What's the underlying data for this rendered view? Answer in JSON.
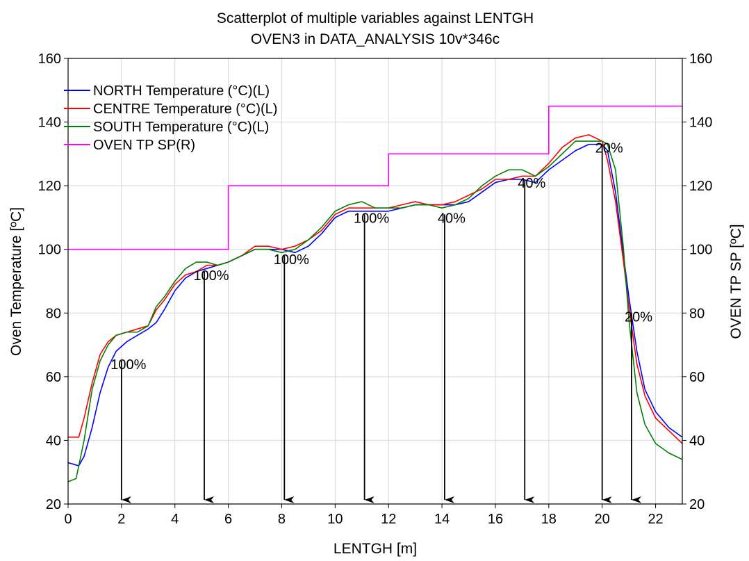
{
  "chart_data": {
    "type": "line",
    "title": "Scatterplot of multiple variables against LENTGH",
    "subtitle": "OVEN3 in DATA_ANALYSIS 10v*346c",
    "xlabel": "LENTGH [m]",
    "ylabel_left": "Oven Temperature [ºC]",
    "ylabel_right": "OVEN TP SP [ºC]",
    "xlim": [
      0,
      23
    ],
    "ylim_left": [
      20,
      160
    ],
    "ylim_right": [
      20,
      160
    ],
    "x_ticks": [
      "0",
      "2",
      "4",
      "6",
      "8",
      "10",
      "12",
      "14",
      "16",
      "18",
      "20",
      "22"
    ],
    "y_ticks_left": [
      "20",
      "40",
      "60",
      "80",
      "100",
      "120",
      "140",
      "160"
    ],
    "y_ticks_right": [
      "20",
      "40",
      "60",
      "80",
      "100",
      "120",
      "140",
      "160"
    ],
    "grid": true,
    "legend_position": "top-left",
    "series": [
      {
        "name": "NORTH Temperature (°C)(L)",
        "color": "#0000ff",
        "axis": "left",
        "x": [
          0,
          0.4,
          0.6,
          0.9,
          1.2,
          1.5,
          1.8,
          2.2,
          2.6,
          3.0,
          3.3,
          3.6,
          4.0,
          4.4,
          4.8,
          5.2,
          5.6,
          6.0,
          6.5,
          7.0,
          7.5,
          8.0,
          8.5,
          9.0,
          9.5,
          10.0,
          10.5,
          11.0,
          11.5,
          12.0,
          12.5,
          13.0,
          13.5,
          14.0,
          14.5,
          15.0,
          15.5,
          16.0,
          16.5,
          17.0,
          17.5,
          18.0,
          18.5,
          19.0,
          19.5,
          20.0,
          20.2,
          20.5,
          20.8,
          21.0,
          21.3,
          21.6,
          22.0,
          22.5,
          23.0
        ],
        "y": [
          33,
          32,
          35,
          44,
          55,
          63,
          68,
          71,
          73,
          75,
          77,
          81,
          87,
          91,
          93,
          94,
          95,
          96,
          98,
          100,
          100,
          100,
          99,
          101,
          105,
          110,
          112,
          112,
          112,
          112,
          113,
          114,
          114,
          114,
          114,
          115,
          118,
          121,
          122,
          122,
          121,
          125,
          128,
          131,
          133,
          133,
          131,
          118,
          98,
          85,
          68,
          56,
          49,
          44,
          41
        ]
      },
      {
        "name": "CENTRE Temperature (°C)(L)",
        "color": "#ff0000",
        "axis": "left",
        "x": [
          0,
          0.4,
          0.6,
          0.9,
          1.2,
          1.5,
          1.8,
          2.2,
          2.6,
          3.0,
          3.3,
          3.6,
          4.0,
          4.4,
          4.8,
          5.2,
          5.6,
          6.0,
          6.5,
          7.0,
          7.5,
          8.0,
          8.5,
          9.0,
          9.5,
          10.0,
          10.5,
          11.0,
          11.5,
          12.0,
          12.5,
          13.0,
          13.5,
          14.0,
          14.5,
          15.0,
          15.5,
          16.0,
          16.5,
          17.0,
          17.5,
          18.0,
          18.5,
          19.0,
          19.5,
          20.0,
          20.2,
          20.5,
          20.8,
          21.0,
          21.3,
          21.6,
          22.0,
          22.5,
          23.0
        ],
        "y": [
          41,
          41,
          47,
          58,
          67,
          71,
          73,
          74,
          75,
          76,
          81,
          84,
          89,
          92,
          93,
          95,
          95,
          96,
          98,
          101,
          101,
          100,
          101,
          103,
          106,
          111,
          113,
          113,
          113,
          113,
          114,
          115,
          114,
          114,
          115,
          117,
          119,
          122,
          122,
          123,
          123,
          127,
          132,
          135,
          136,
          134,
          128,
          115,
          96,
          82,
          64,
          54,
          47,
          43,
          39
        ]
      },
      {
        "name": "SOUTH Temperature (°C)(L)",
        "color": "#008000",
        "axis": "left",
        "x": [
          0,
          0.3,
          0.6,
          0.9,
          1.2,
          1.5,
          1.8,
          2.2,
          2.6,
          3.0,
          3.3,
          3.6,
          4.0,
          4.4,
          4.8,
          5.2,
          5.6,
          6.0,
          6.5,
          7.0,
          7.5,
          8.0,
          8.5,
          9.0,
          9.5,
          10.0,
          10.5,
          11.0,
          11.5,
          12.0,
          12.5,
          13.0,
          13.5,
          14.0,
          14.5,
          15.0,
          15.5,
          16.0,
          16.5,
          17.0,
          17.5,
          18.0,
          18.5,
          19.0,
          19.5,
          20.0,
          20.2,
          20.5,
          20.8,
          21.0,
          21.3,
          21.6,
          22.0,
          22.5,
          23.0
        ],
        "y": [
          27,
          28,
          40,
          56,
          65,
          70,
          73,
          74,
          74,
          76,
          82,
          85,
          90,
          94,
          96,
          96,
          95,
          96,
          98,
          100,
          100,
          99,
          100,
          103,
          107,
          112,
          114,
          115,
          113,
          113,
          113,
          114,
          114,
          113,
          114,
          116,
          120,
          123,
          125,
          125,
          123,
          126,
          130,
          134,
          134,
          134,
          133,
          125,
          100,
          78,
          55,
          45,
          39,
          36,
          34
        ]
      },
      {
        "name": "OVEN TP SP(R)",
        "color": "#ff00ff",
        "axis": "right",
        "step": true,
        "x": [
          0,
          6,
          6,
          12,
          12,
          18,
          18,
          23
        ],
        "y": [
          100,
          100,
          120,
          120,
          130,
          130,
          145,
          145
        ]
      }
    ],
    "annotations": [
      {
        "x": 2,
        "y_top": 65,
        "label": "100%"
      },
      {
        "x": 5.1,
        "y_top": 93,
        "label": "100%"
      },
      {
        "x": 8.1,
        "y_top": 98,
        "label": "100%"
      },
      {
        "x": 11.1,
        "y_top": 111,
        "label": "100%"
      },
      {
        "x": 14.1,
        "y_top": 111,
        "label": "40%"
      },
      {
        "x": 17.1,
        "y_top": 122,
        "label": "40%"
      },
      {
        "x": 20.0,
        "y_top": 133,
        "label": "20%"
      },
      {
        "x": 21.1,
        "y_top": 80,
        "label": "20%"
      }
    ]
  }
}
